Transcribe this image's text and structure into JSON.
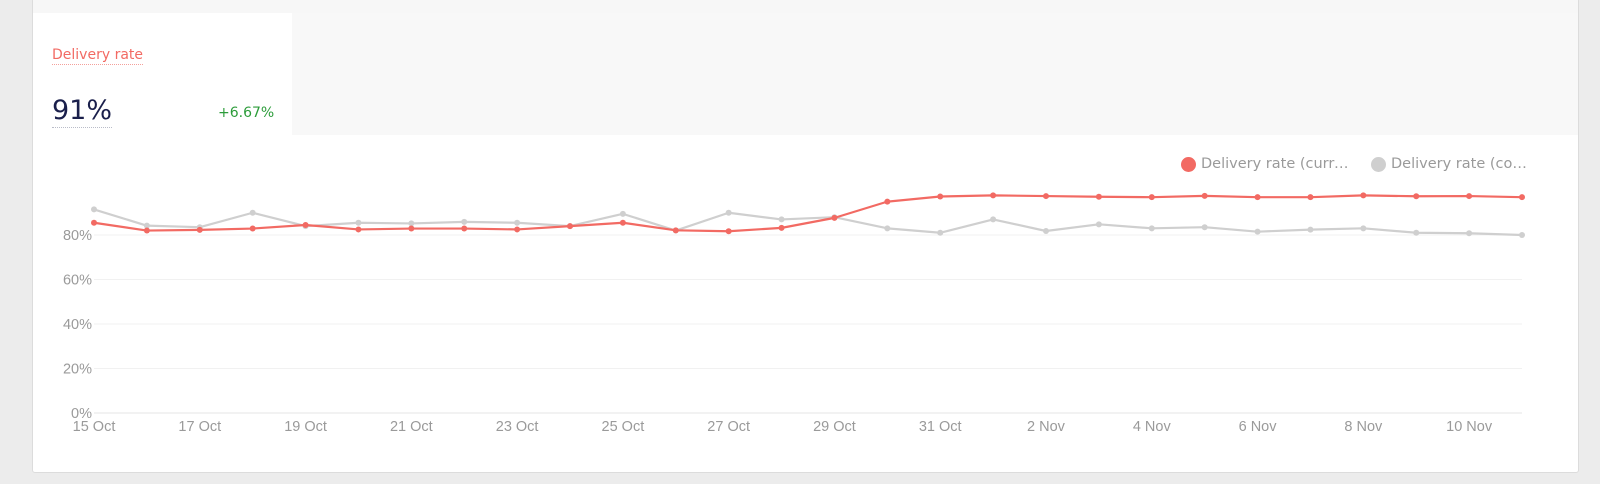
{
  "metric": {
    "label": "Delivery rate",
    "value": "91%",
    "delta": "+6.67%"
  },
  "legend": {
    "current": "Delivery rate (curre...",
    "compare": "Delivery rate (compa..."
  },
  "colors": {
    "current": "#f26a63",
    "compare": "#cfcfcf",
    "value_text": "#1a1f4b",
    "delta_text": "#2c9c3a"
  },
  "chart_data": {
    "type": "line",
    "x": [
      "15 Oct",
      "16 Oct",
      "17 Oct",
      "18 Oct",
      "19 Oct",
      "20 Oct",
      "21 Oct",
      "22 Oct",
      "23 Oct",
      "24 Oct",
      "25 Oct",
      "26 Oct",
      "27 Oct",
      "28 Oct",
      "29 Oct",
      "30 Oct",
      "31 Oct",
      "1 Nov",
      "2 Nov",
      "3 Nov",
      "4 Nov",
      "5 Nov",
      "6 Nov",
      "7 Nov",
      "8 Nov",
      "9 Nov",
      "10 Nov",
      "11 Nov"
    ],
    "x_tick_labels": [
      "15 Oct",
      "17 Oct",
      "19 Oct",
      "21 Oct",
      "23 Oct",
      "25 Oct",
      "27 Oct",
      "29 Oct",
      "31 Oct",
      "2 Nov",
      "4 Nov",
      "6 Nov",
      "8 Nov",
      "10 Nov"
    ],
    "y_tick_labels": [
      "0%",
      "20%",
      "40%",
      "60%",
      "80%"
    ],
    "ylim": [
      0,
      100
    ],
    "series": [
      {
        "name": "Delivery rate (curre...",
        "color": "#f26a63",
        "values": [
          85.5,
          82.0,
          82.3,
          82.9,
          84.5,
          82.5,
          82.9,
          82.9,
          82.5,
          84.0,
          85.5,
          82.1,
          81.7,
          83.2,
          87.7,
          95.0,
          97.3,
          97.8,
          97.5,
          97.2,
          97.0,
          97.6,
          97.0,
          97.0,
          97.8,
          97.4,
          97.5,
          97.0
        ]
      },
      {
        "name": "Delivery rate (compa...",
        "color": "#cfcfcf",
        "values": [
          91.5,
          84.2,
          83.5,
          90.0,
          84.0,
          85.5,
          85.2,
          85.9,
          85.5,
          84.0,
          89.5,
          82.0,
          90.0,
          87.0,
          88.0,
          83.0,
          81.0,
          87.0,
          81.8,
          84.8,
          83.0,
          83.5,
          81.5,
          82.4,
          83.0,
          81.0,
          80.8,
          80.0
        ]
      }
    ],
    "grid": true,
    "legend_position": "top-right"
  }
}
